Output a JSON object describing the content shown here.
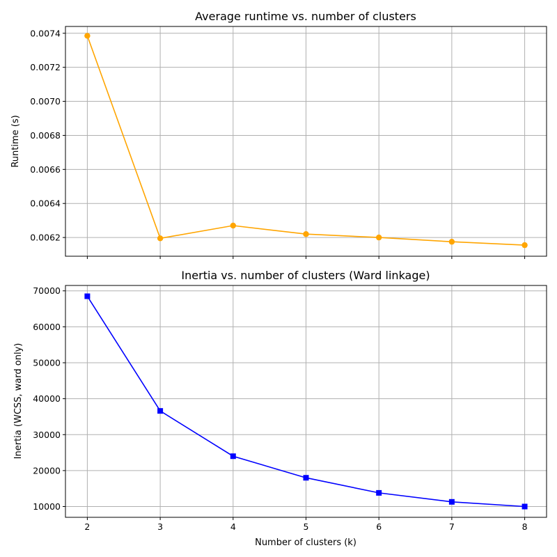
{
  "chart_data": [
    {
      "type": "line",
      "title": "Average runtime vs. number of clusters",
      "xlabel": "",
      "ylabel": "Runtime (s)",
      "x": [
        2,
        3,
        4,
        5,
        6,
        7,
        8
      ],
      "xlim": [
        1.7,
        8.3
      ],
      "ylim": [
        0.00609,
        0.00744
      ],
      "yticks": [
        0.0062,
        0.0064,
        0.0066,
        0.0068,
        0.007,
        0.0072,
        0.0074
      ],
      "ytick_labels": [
        "0.0062",
        "0.0064",
        "0.0066",
        "0.0068",
        "0.0070",
        "0.0072",
        "0.0074"
      ],
      "xtick_labels_shown": false,
      "grid": true,
      "series": [
        {
          "values": [
            0.007385,
            0.006195,
            0.00627,
            0.00622,
            0.0062,
            0.006175,
            0.006155
          ],
          "color": "#FFA500",
          "marker": "circle"
        }
      ]
    },
    {
      "type": "line",
      "title": "Inertia vs. number of clusters (Ward linkage)",
      "xlabel": "Number of clusters (k)",
      "ylabel": "Inertia (WCSS, ward only)",
      "x": [
        2,
        3,
        4,
        5,
        6,
        7,
        8
      ],
      "xlim": [
        1.7,
        8.3
      ],
      "ylim": [
        7000,
        71500
      ],
      "yticks": [
        10000,
        20000,
        30000,
        40000,
        50000,
        60000,
        70000
      ],
      "ytick_labels": [
        "10000",
        "20000",
        "30000",
        "40000",
        "50000",
        "60000",
        "70000"
      ],
      "xtick_labels": [
        "2",
        "3",
        "4",
        "5",
        "6",
        "7",
        "8"
      ],
      "grid": true,
      "series": [
        {
          "values": [
            68500,
            36600,
            24000,
            18000,
            13800,
            11300,
            10000
          ],
          "color": "#0000FF",
          "marker": "square"
        }
      ]
    }
  ]
}
